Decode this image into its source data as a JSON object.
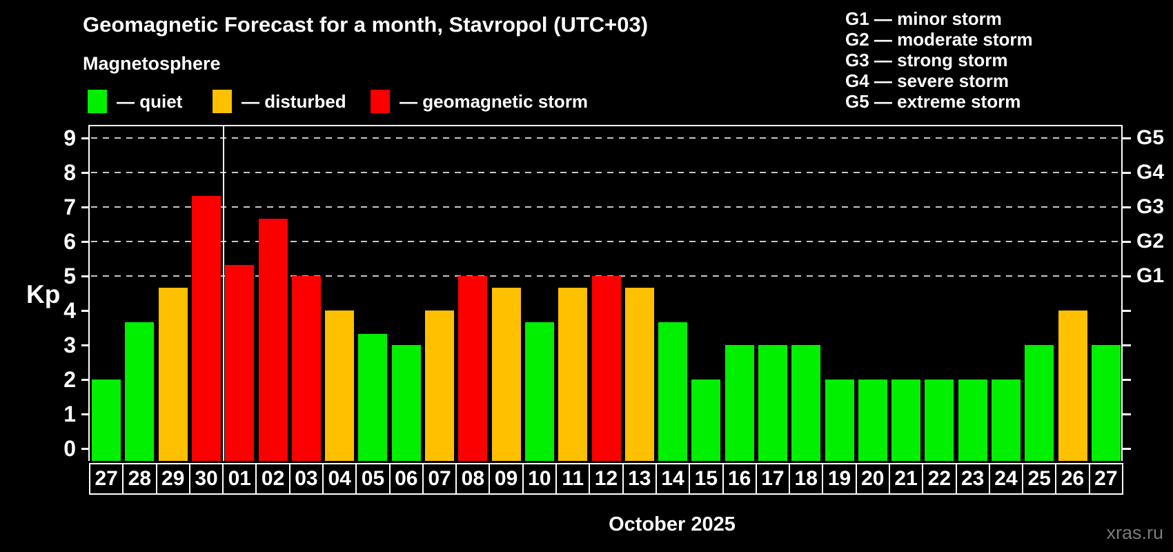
{
  "watermark": "xras.ru",
  "chart_data": {
    "type": "bar",
    "title": "Geomagnetic Forecast for a month, Stavropol (UTC+03)",
    "subtitle": "Magnetosphere",
    "ylabel": "Kp",
    "month_label": "October 2025",
    "ylim": [
      0,
      9
    ],
    "yticks": [
      0,
      1,
      2,
      3,
      4,
      5,
      6,
      7,
      8,
      9
    ],
    "grid_levels": [
      5,
      6,
      7,
      8,
      9
    ],
    "right_axis_labels": [
      {
        "label": "G1",
        "kp": 5
      },
      {
        "label": "G2",
        "kp": 6
      },
      {
        "label": "G3",
        "kp": 7
      },
      {
        "label": "G4",
        "kp": 8
      },
      {
        "label": "G5",
        "kp": 9
      }
    ],
    "legend": [
      {
        "label": "— quiet",
        "status": "quiet"
      },
      {
        "label": "— disturbed",
        "status": "disturbed"
      },
      {
        "label": "— geomagnetic storm",
        "status": "storm"
      }
    ],
    "g_legend": [
      "G1 — minor storm",
      "G2 — moderate storm",
      "G3 — strong storm",
      "G4 — severe storm",
      "G5 — extreme storm"
    ],
    "status_colors": {
      "quiet": "#00f000",
      "disturbed": "#ffc000",
      "storm": "#fc0000"
    },
    "grid_color": "#c8c8c8",
    "month_boundary_after_index": 3,
    "days": [
      {
        "day": "27",
        "kp": 2.0,
        "status": "quiet"
      },
      {
        "day": "28",
        "kp": 3.67,
        "status": "quiet"
      },
      {
        "day": "29",
        "kp": 4.67,
        "status": "disturbed"
      },
      {
        "day": "30",
        "kp": 7.33,
        "status": "storm"
      },
      {
        "day": "01",
        "kp": 5.33,
        "status": "storm"
      },
      {
        "day": "02",
        "kp": 6.67,
        "status": "storm"
      },
      {
        "day": "03",
        "kp": 5.0,
        "status": "storm"
      },
      {
        "day": "04",
        "kp": 4.0,
        "status": "disturbed"
      },
      {
        "day": "05",
        "kp": 3.33,
        "status": "quiet"
      },
      {
        "day": "06",
        "kp": 3.0,
        "status": "quiet"
      },
      {
        "day": "07",
        "kp": 4.0,
        "status": "disturbed"
      },
      {
        "day": "08",
        "kp": 5.0,
        "status": "storm"
      },
      {
        "day": "09",
        "kp": 4.67,
        "status": "disturbed"
      },
      {
        "day": "10",
        "kp": 3.67,
        "status": "quiet"
      },
      {
        "day": "11",
        "kp": 4.67,
        "status": "disturbed"
      },
      {
        "day": "12",
        "kp": 5.0,
        "status": "storm"
      },
      {
        "day": "13",
        "kp": 4.67,
        "status": "disturbed"
      },
      {
        "day": "14",
        "kp": 3.67,
        "status": "quiet"
      },
      {
        "day": "15",
        "kp": 2.0,
        "status": "quiet"
      },
      {
        "day": "16",
        "kp": 3.0,
        "status": "quiet"
      },
      {
        "day": "17",
        "kp": 3.0,
        "status": "quiet"
      },
      {
        "day": "18",
        "kp": 3.0,
        "status": "quiet"
      },
      {
        "day": "19",
        "kp": 2.0,
        "status": "quiet"
      },
      {
        "day": "20",
        "kp": 2.0,
        "status": "quiet"
      },
      {
        "day": "21",
        "kp": 2.0,
        "status": "quiet"
      },
      {
        "day": "22",
        "kp": 2.0,
        "status": "quiet"
      },
      {
        "day": "23",
        "kp": 2.0,
        "status": "quiet"
      },
      {
        "day": "24",
        "kp": 2.0,
        "status": "quiet"
      },
      {
        "day": "25",
        "kp": 3.0,
        "status": "quiet"
      },
      {
        "day": "26",
        "kp": 4.0,
        "status": "disturbed"
      },
      {
        "day": "27",
        "kp": 3.0,
        "status": "quiet"
      }
    ]
  }
}
